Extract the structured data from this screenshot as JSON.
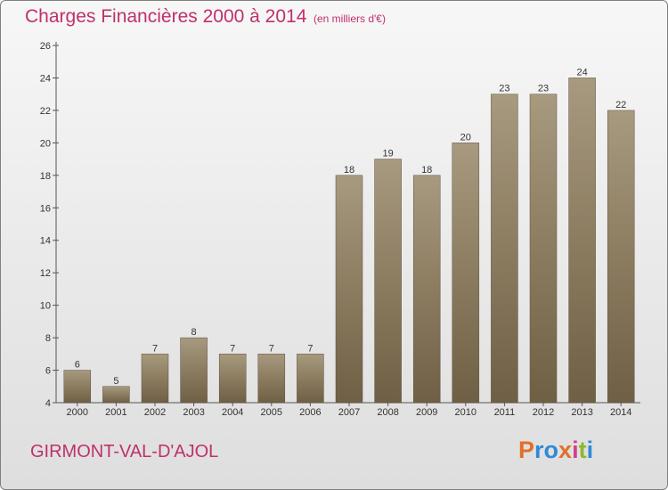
{
  "title": "Charges Financières 2000 à 2014",
  "subtitle": "(en milliers d'€)",
  "commune": "GIRMONT-VAL-D'AJOL",
  "logo": {
    "text": "Proxiti",
    "letter_colors": [
      "#e0702a",
      "#2e8ad8",
      "#2e8ad8",
      "#e0702a",
      "#d43f8a",
      "#8cb82c",
      "#2e8ad8"
    ]
  },
  "colors": {
    "title": "#c0306a",
    "bar_top": "#a89a7e",
    "bar_bottom": "#6f5f44",
    "axis": "#555555",
    "background_top": "#f7f7f7",
    "background_bottom": "#dedede"
  },
  "chart_data": {
    "type": "bar",
    "title": "Charges Financières 2000 à 2014",
    "subtitle": "(en milliers d'€)",
    "categories": [
      "2000",
      "2001",
      "2002",
      "2003",
      "2004",
      "2005",
      "2006",
      "2007",
      "2008",
      "2009",
      "2010",
      "2011",
      "2012",
      "2013",
      "2014"
    ],
    "values": [
      6,
      5,
      7,
      8,
      7,
      7,
      7,
      18,
      19,
      18,
      20,
      23,
      23,
      24,
      22
    ],
    "ylim": [
      4,
      26
    ],
    "yticks": [
      4,
      6,
      8,
      10,
      12,
      14,
      16,
      18,
      20,
      22,
      24,
      26
    ],
    "xlabel": "",
    "ylabel": "",
    "grid": false,
    "legend": "none"
  }
}
